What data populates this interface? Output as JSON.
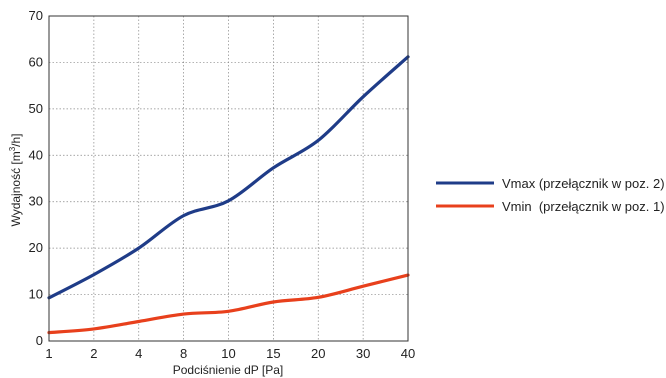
{
  "chart_data": {
    "type": "line",
    "xlabel": "Podciśnienie dP [Pa]",
    "ylabel_parts": {
      "before": "Wydajność [m",
      "sup": "3",
      "after": "/h]"
    },
    "x_tick_labels": [
      "1",
      "2",
      "4",
      "8",
      "10",
      "15",
      "20",
      "30",
      "40"
    ],
    "y_ticks": [
      0,
      10,
      20,
      30,
      40,
      50,
      60,
      70
    ],
    "ylim": [
      0,
      70
    ],
    "grid": true,
    "legend_position": "right",
    "series": [
      {
        "name": "Vmax (przełącznik w poz. 2)",
        "color": "#1f3c88",
        "values": [
          9.3,
          14.3,
          20,
          27,
          30.2,
          37.3,
          43.2,
          52.6,
          61.2
        ]
      },
      {
        "name": "Vmin  (przełącznik w poz. 1)",
        "color": "#e8401c",
        "values": [
          1.8,
          2.6,
          4.2,
          5.8,
          6.4,
          8.4,
          9.4,
          11.8,
          14.2
        ]
      }
    ]
  }
}
